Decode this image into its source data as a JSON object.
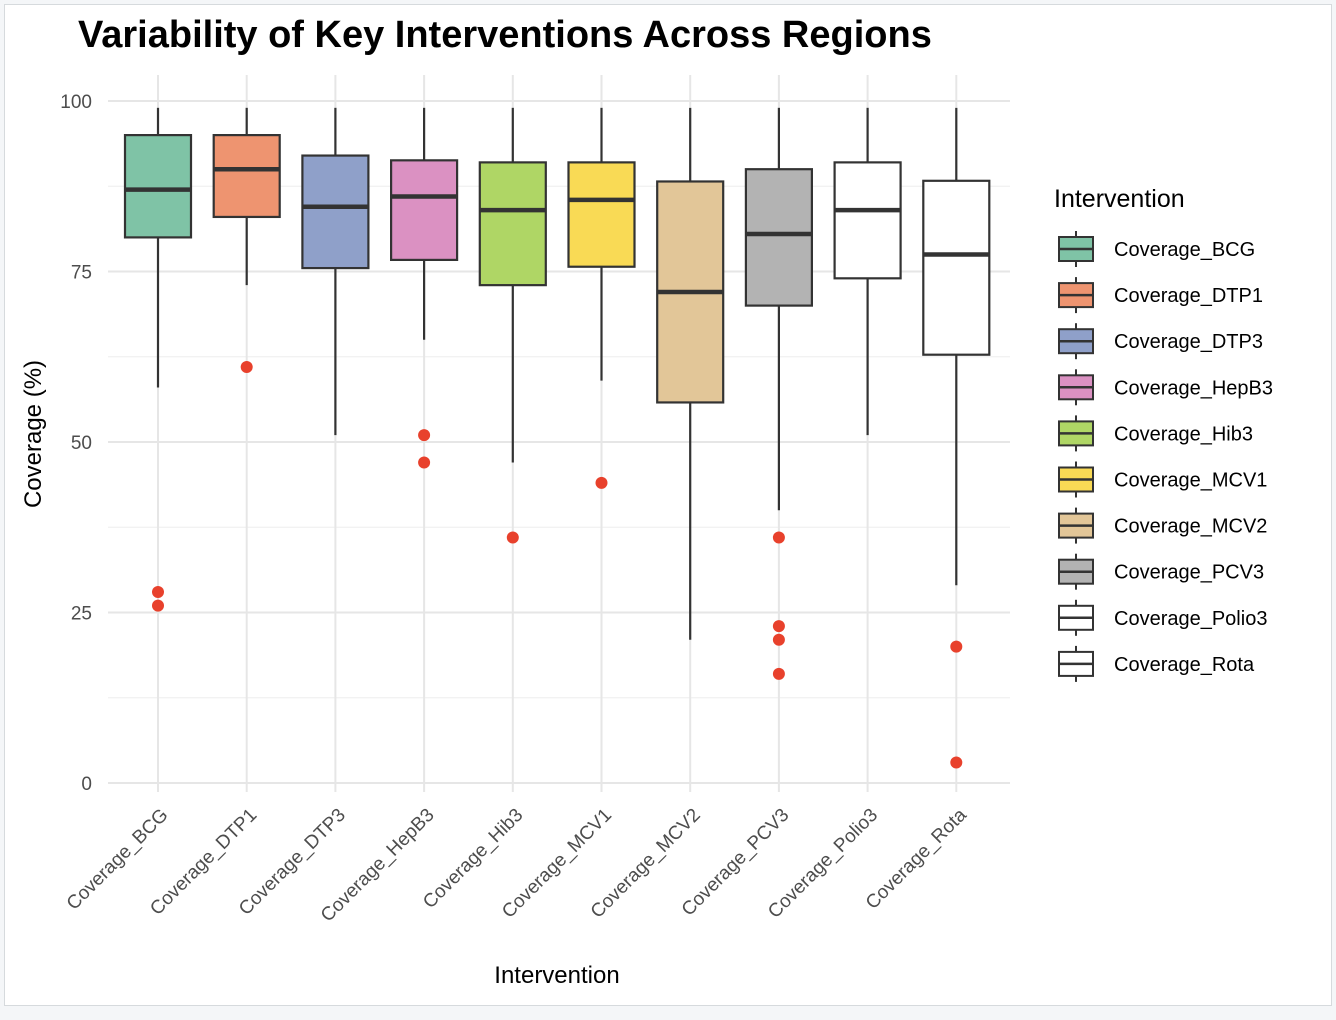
{
  "chart_data": {
    "type": "box",
    "title": "Variability of Key Interventions Across Regions",
    "xlabel": "Intervention",
    "ylabel": "Coverage (%)",
    "ylim": [
      0,
      100
    ],
    "yticks": [
      0,
      25,
      50,
      75,
      100
    ],
    "grid": true,
    "legend": {
      "title": "Intervention",
      "position": "right"
    },
    "outlier_color": "#e8412c",
    "categories": [
      "Coverage_BCG",
      "Coverage_DTP1",
      "Coverage_DTP3",
      "Coverage_HepB3",
      "Coverage_Hib3",
      "Coverage_MCV1",
      "Coverage_MCV2",
      "Coverage_PCV3",
      "Coverage_Polio3",
      "Coverage_Rota"
    ],
    "series": [
      {
        "name": "Coverage_BCG",
        "color": "#7fc3a6",
        "whisker_low": 58,
        "q1": 80,
        "median": 87,
        "q3": 95,
        "whisker_high": 99,
        "outliers": [
          28,
          26
        ]
      },
      {
        "name": "Coverage_DTP1",
        "color": "#ee9470",
        "whisker_low": 73,
        "q1": 83,
        "median": 90,
        "q3": 95,
        "whisker_high": 99,
        "outliers": [
          61
        ]
      },
      {
        "name": "Coverage_DTP3",
        "color": "#8fa0c9",
        "whisker_low": 51,
        "q1": 75.5,
        "median": 84.5,
        "q3": 92,
        "whisker_high": 99,
        "outliers": []
      },
      {
        "name": "Coverage_HepB3",
        "color": "#db91c2",
        "whisker_low": 65,
        "q1": 76.7,
        "median": 86,
        "q3": 91.3,
        "whisker_high": 99,
        "outliers": [
          51,
          47
        ]
      },
      {
        "name": "Coverage_Hib3",
        "color": "#afd665",
        "whisker_low": 47,
        "q1": 73,
        "median": 84,
        "q3": 91,
        "whisker_high": 99,
        "outliers": [
          36
        ]
      },
      {
        "name": "Coverage_MCV1",
        "color": "#f9da55",
        "whisker_low": 59,
        "q1": 75.7,
        "median": 85.5,
        "q3": 91,
        "whisker_high": 99,
        "outliers": [
          44
        ]
      },
      {
        "name": "Coverage_MCV2",
        "color": "#e2c698",
        "whisker_low": 21,
        "q1": 55.8,
        "median": 72,
        "q3": 88.2,
        "whisker_high": 99,
        "outliers": []
      },
      {
        "name": "Coverage_PCV3",
        "color": "#b3b3b3",
        "whisker_low": 40,
        "q1": 70,
        "median": 80.5,
        "q3": 90,
        "whisker_high": 99,
        "outliers": [
          36,
          23,
          21,
          16
        ]
      },
      {
        "name": "Coverage_Polio3",
        "color": "#ffffff",
        "whisker_low": 51,
        "q1": 74,
        "median": 84,
        "q3": 91,
        "whisker_high": 99,
        "outliers": []
      },
      {
        "name": "Coverage_Rota",
        "color": "#ffffff",
        "whisker_low": 29,
        "q1": 62.8,
        "median": 77.5,
        "q3": 88.3,
        "whisker_high": 99,
        "outliers": [
          20,
          3
        ]
      }
    ]
  }
}
